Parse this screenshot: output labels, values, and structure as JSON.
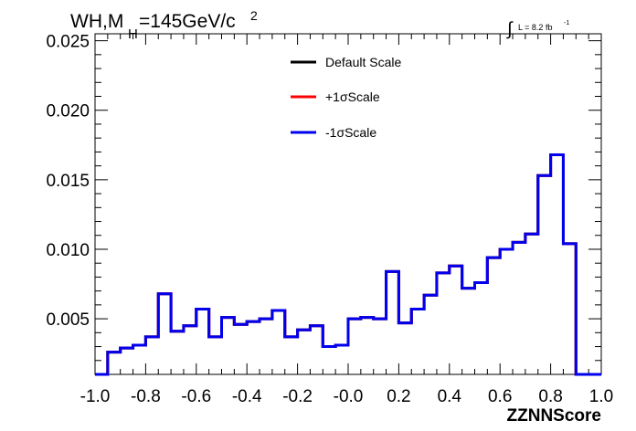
{
  "header": {
    "title_main": "WH,M",
    "title_sub": "H",
    "title_rest": "=145GeV/c",
    "title_sup": "2",
    "lumi_integral": "∫",
    "lumi_text": "L = 8.2 fb",
    "lumi_sup": "-1"
  },
  "chart_data": {
    "type": "line",
    "style": "step-histogram",
    "xlabel": "ZZNNScore",
    "ylabel": "",
    "xlim": [
      -1.0,
      1.0
    ],
    "ylim": [
      0.001,
      0.0255
    ],
    "x_tick_labels": [
      "-1.0",
      "-0.8",
      "-0.6",
      "-0.4",
      "-0.2",
      "-0.0",
      "0.2",
      "0.4",
      "0.6",
      "0.8",
      "1.0"
    ],
    "x_tick_values": [
      -1.0,
      -0.8,
      -0.6,
      -0.4,
      -0.2,
      0.0,
      0.2,
      0.4,
      0.6,
      0.8,
      1.0
    ],
    "y_tick_labels": [
      "0.005",
      "0.010",
      "0.015",
      "0.020",
      "0.025"
    ],
    "y_tick_values": [
      0.005,
      0.01,
      0.015,
      0.02,
      0.025
    ],
    "bin_edges_start": -1.0,
    "bin_width": 0.05,
    "legend_position": "top-center",
    "grid": false,
    "series": [
      {
        "name": "Default Scale",
        "color": "#000000",
        "values": [
          0.001,
          0.0026,
          0.0029,
          0.0031,
          0.0037,
          0.0068,
          0.0041,
          0.0045,
          0.0057,
          0.0037,
          0.0051,
          0.0046,
          0.0048,
          0.005,
          0.0056,
          0.0037,
          0.0042,
          0.0045,
          0.003,
          0.0031,
          0.005,
          0.0051,
          0.005,
          0.0084,
          0.0047,
          0.0057,
          0.0067,
          0.0083,
          0.0088,
          0.0072,
          0.0076,
          0.0094,
          0.01,
          0.0105,
          0.0111,
          0.0153,
          0.0168,
          0.0104,
          0.001,
          0.001
        ]
      },
      {
        "name": "+1σScale",
        "color": "#ff0000",
        "values": [
          0.001,
          0.0026,
          0.0029,
          0.0031,
          0.0037,
          0.0068,
          0.0041,
          0.0045,
          0.0057,
          0.0037,
          0.0051,
          0.0046,
          0.0048,
          0.005,
          0.0056,
          0.0037,
          0.0042,
          0.0045,
          0.003,
          0.0031,
          0.005,
          0.0051,
          0.005,
          0.0084,
          0.0047,
          0.0057,
          0.0067,
          0.0083,
          0.0088,
          0.0072,
          0.0076,
          0.0094,
          0.01,
          0.0105,
          0.0111,
          0.0153,
          0.0168,
          0.0104,
          0.001,
          0.001
        ]
      },
      {
        "name": "-1σScale",
        "color": "#0000ee",
        "values": [
          0.001,
          0.0026,
          0.0029,
          0.0031,
          0.0037,
          0.0068,
          0.0041,
          0.0045,
          0.0057,
          0.0037,
          0.0051,
          0.0046,
          0.0048,
          0.005,
          0.0056,
          0.0037,
          0.0042,
          0.0045,
          0.003,
          0.0031,
          0.005,
          0.0051,
          0.005,
          0.0084,
          0.0047,
          0.0057,
          0.0067,
          0.0083,
          0.0088,
          0.0072,
          0.0076,
          0.0094,
          0.01,
          0.0105,
          0.0111,
          0.0153,
          0.0168,
          0.0104,
          0.001,
          0.001
        ]
      }
    ]
  }
}
